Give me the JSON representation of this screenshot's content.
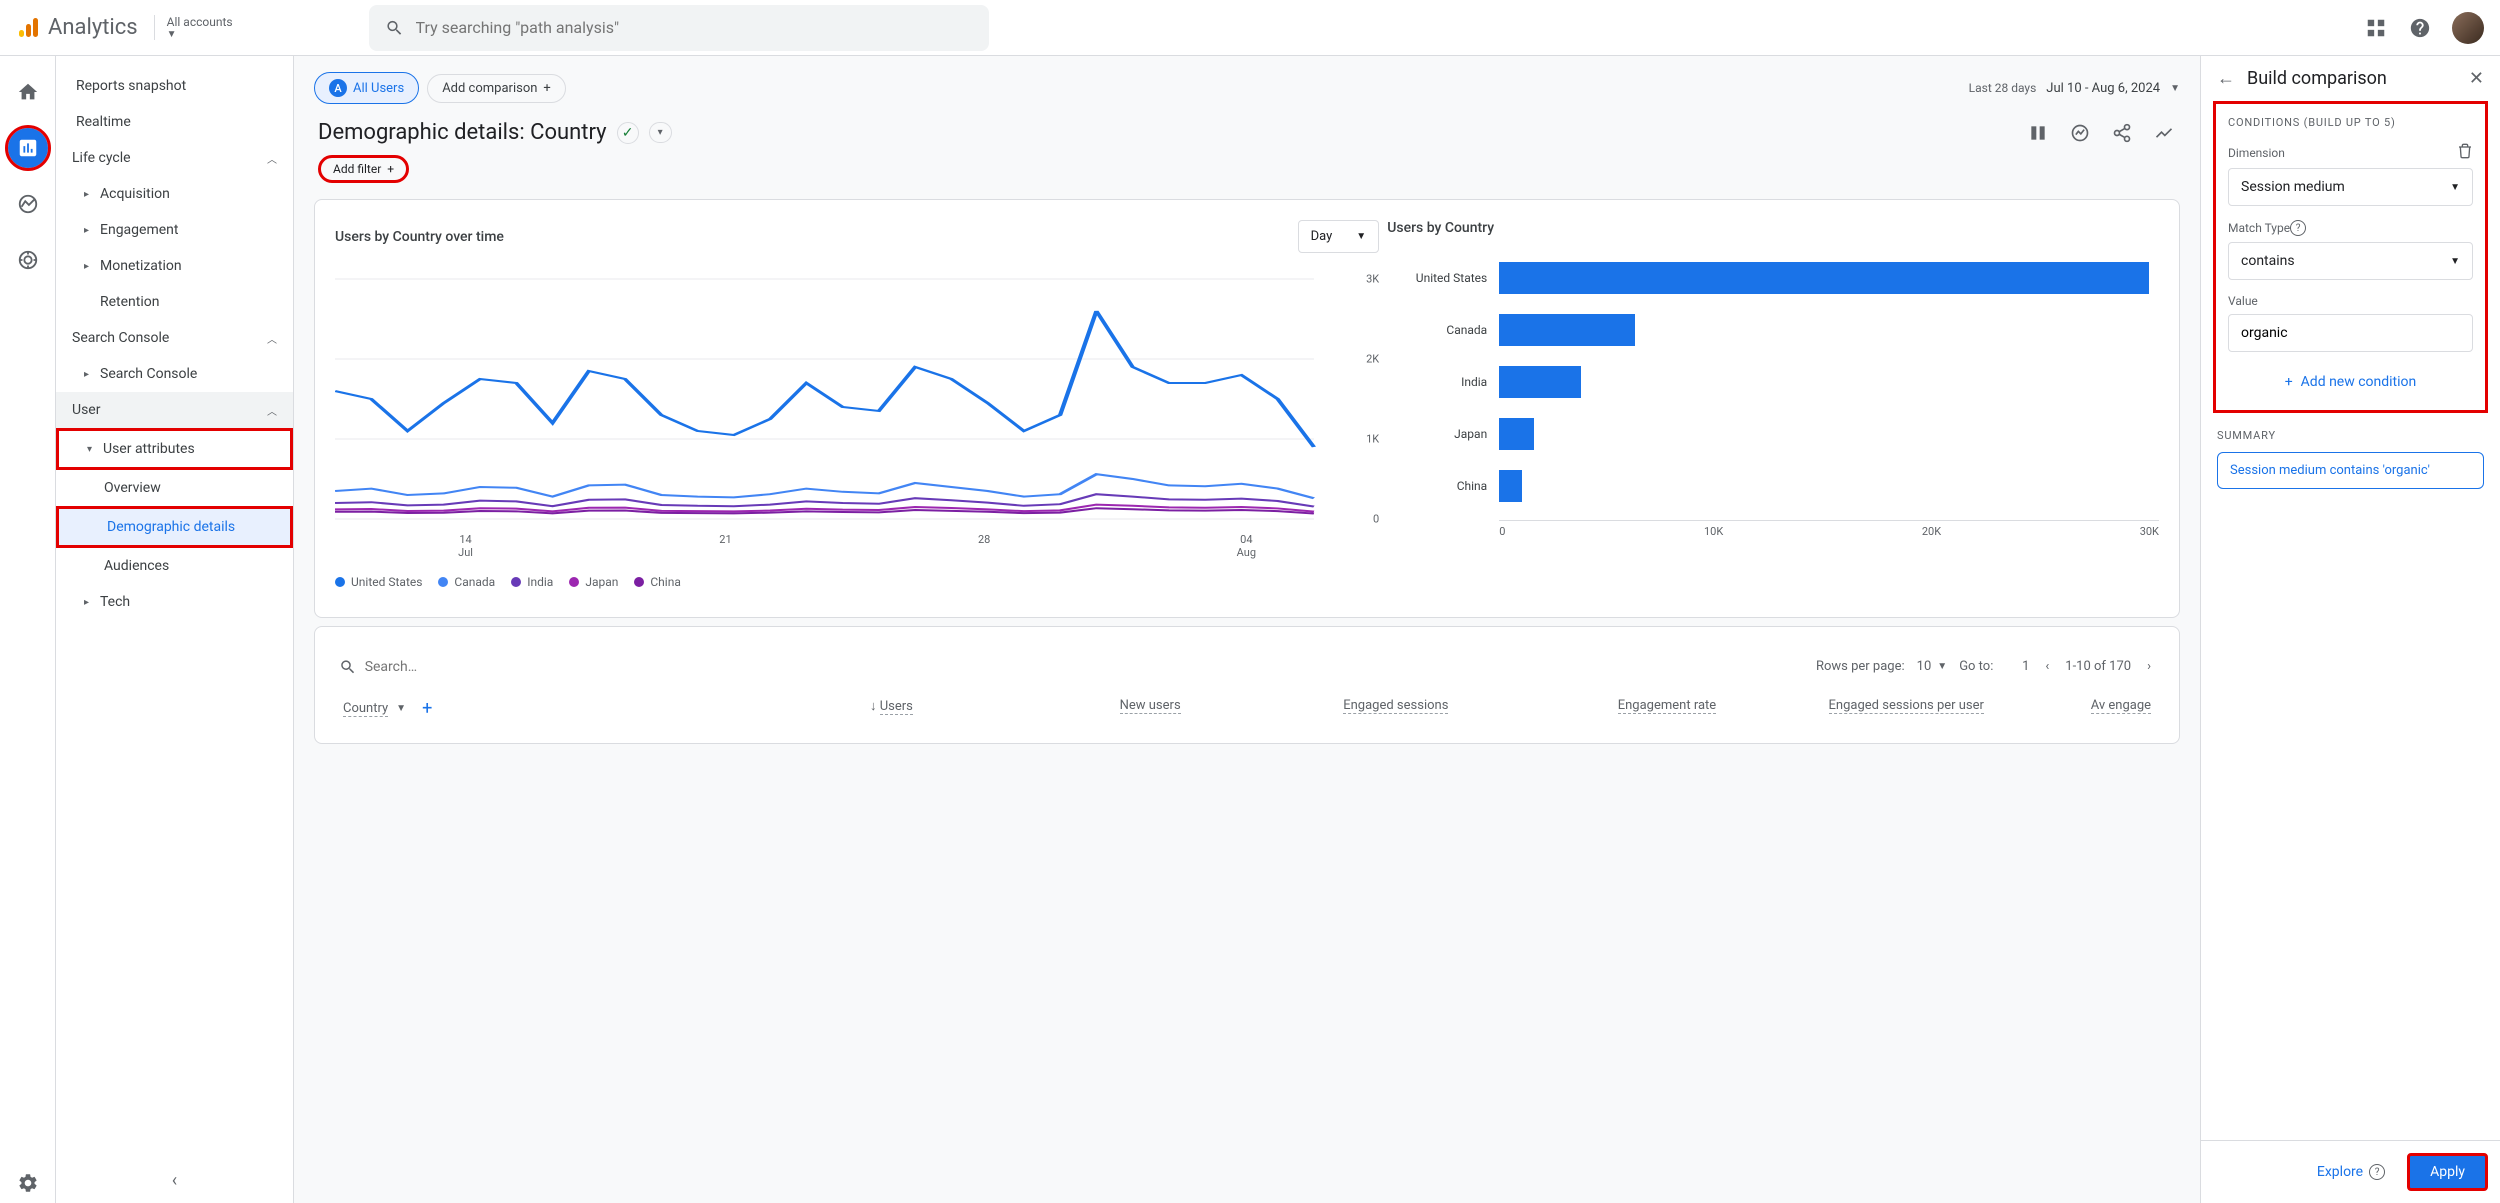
{
  "topbar": {
    "product": "Analytics",
    "account_label": "All accounts",
    "search_placeholder": "Try searching \"path analysis\""
  },
  "sidenav": {
    "reports_snapshot": "Reports snapshot",
    "realtime": "Realtime",
    "life_cycle": "Life cycle",
    "acquisition": "Acquisition",
    "engagement": "Engagement",
    "monetization": "Monetization",
    "retention": "Retention",
    "search_console_grp": "Search Console",
    "search_console": "Search Console",
    "user": "User",
    "user_attributes": "User attributes",
    "overview": "Overview",
    "demographic_details": "Demographic details",
    "audiences": "Audiences",
    "tech": "Tech"
  },
  "chips": {
    "all_users_badge": "A",
    "all_users": "All Users",
    "add_comparison": "Add comparison"
  },
  "date": {
    "preset": "Last 28 days",
    "range": "Jul 10 - Aug 6, 2024"
  },
  "page": {
    "title": "Demographic details: Country",
    "add_filter": "Add filter"
  },
  "linechart": {
    "title": "Users by Country over time",
    "interval": "Day",
    "y_ticks": [
      "3K",
      "2K",
      "1K",
      "0"
    ],
    "x_ticks": [
      {
        "d": "14",
        "m": "Jul"
      },
      {
        "d": "21",
        "m": ""
      },
      {
        "d": "28",
        "m": ""
      },
      {
        "d": "04",
        "m": "Aug"
      }
    ],
    "series": [
      {
        "name": "United States",
        "color": "#1a73e8",
        "points": [
          1600,
          1500,
          1100,
          1450,
          1750,
          1700,
          1200,
          1850,
          1750,
          1300,
          1100,
          1050,
          1250,
          1700,
          1400,
          1350,
          1900,
          1750,
          1450,
          1100,
          1300,
          2600,
          1900,
          1700,
          1700,
          1800,
          1500,
          900
        ]
      },
      {
        "name": "Canada",
        "color": "#4285f4",
        "points": [
          350,
          380,
          300,
          320,
          400,
          390,
          280,
          420,
          430,
          300,
          280,
          270,
          310,
          380,
          340,
          320,
          450,
          400,
          350,
          280,
          310,
          560,
          500,
          420,
          410,
          440,
          380,
          260
        ]
      },
      {
        "name": "India",
        "color": "#673ab7",
        "points": [
          200,
          210,
          170,
          180,
          230,
          220,
          160,
          240,
          245,
          175,
          165,
          160,
          180,
          220,
          200,
          190,
          260,
          235,
          205,
          165,
          185,
          310,
          280,
          245,
          240,
          255,
          225,
          155
        ]
      },
      {
        "name": "Japan",
        "color": "#9c27b0",
        "points": [
          120,
          125,
          100,
          105,
          135,
          130,
          95,
          140,
          142,
          102,
          98,
          95,
          106,
          128,
          117,
          112,
          150,
          138,
          120,
          98,
          108,
          180,
          165,
          145,
          140,
          150,
          132,
          92
        ]
      },
      {
        "name": "China",
        "color": "#7b1fa2",
        "points": [
          90,
          92,
          75,
          78,
          100,
          96,
          70,
          104,
          106,
          76,
          73,
          71,
          79,
          95,
          87,
          83,
          112,
          102,
          90,
          73,
          80,
          135,
          122,
          108,
          105,
          112,
          99,
          68
        ]
      }
    ]
  },
  "barchart": {
    "title": "Users by Country",
    "x_ticks": [
      "0",
      "10K",
      "20K",
      "30K"
    ],
    "max": 34000,
    "bars": [
      {
        "label": "United States",
        "value": 33500
      },
      {
        "label": "Canada",
        "value": 7000
      },
      {
        "label": "India",
        "value": 4200
      },
      {
        "label": "Japan",
        "value": 1800
      },
      {
        "label": "China",
        "value": 1200
      }
    ],
    "color": "#1a73e8"
  },
  "table": {
    "search_placeholder": "Search…",
    "rows_per_page_label": "Rows per page:",
    "rows_per_page": "10",
    "goto_label": "Go to:",
    "goto_value": "1",
    "range": "1-10 of 170",
    "columns": {
      "country": "Country",
      "users": "Users",
      "new_users": "New users",
      "engaged_sessions": "Engaged sessions",
      "engagement_rate": "Engagement rate",
      "engaged_sessions_per_user": "Engaged sessions per user",
      "avg_engage": "Av engage"
    }
  },
  "panel": {
    "title": "Build comparison",
    "conditions_title": "CONDITIONS (BUILD UP TO 5)",
    "dimension_label": "Dimension",
    "dimension_value": "Session medium",
    "match_type_label": "Match Type",
    "match_type_value": "contains",
    "value_label": "Value",
    "value_value": "organic",
    "add_condition": "Add new condition",
    "summary_title": "SUMMARY",
    "summary_text": "Session medium contains 'organic'",
    "explore": "Explore",
    "apply": "Apply"
  }
}
